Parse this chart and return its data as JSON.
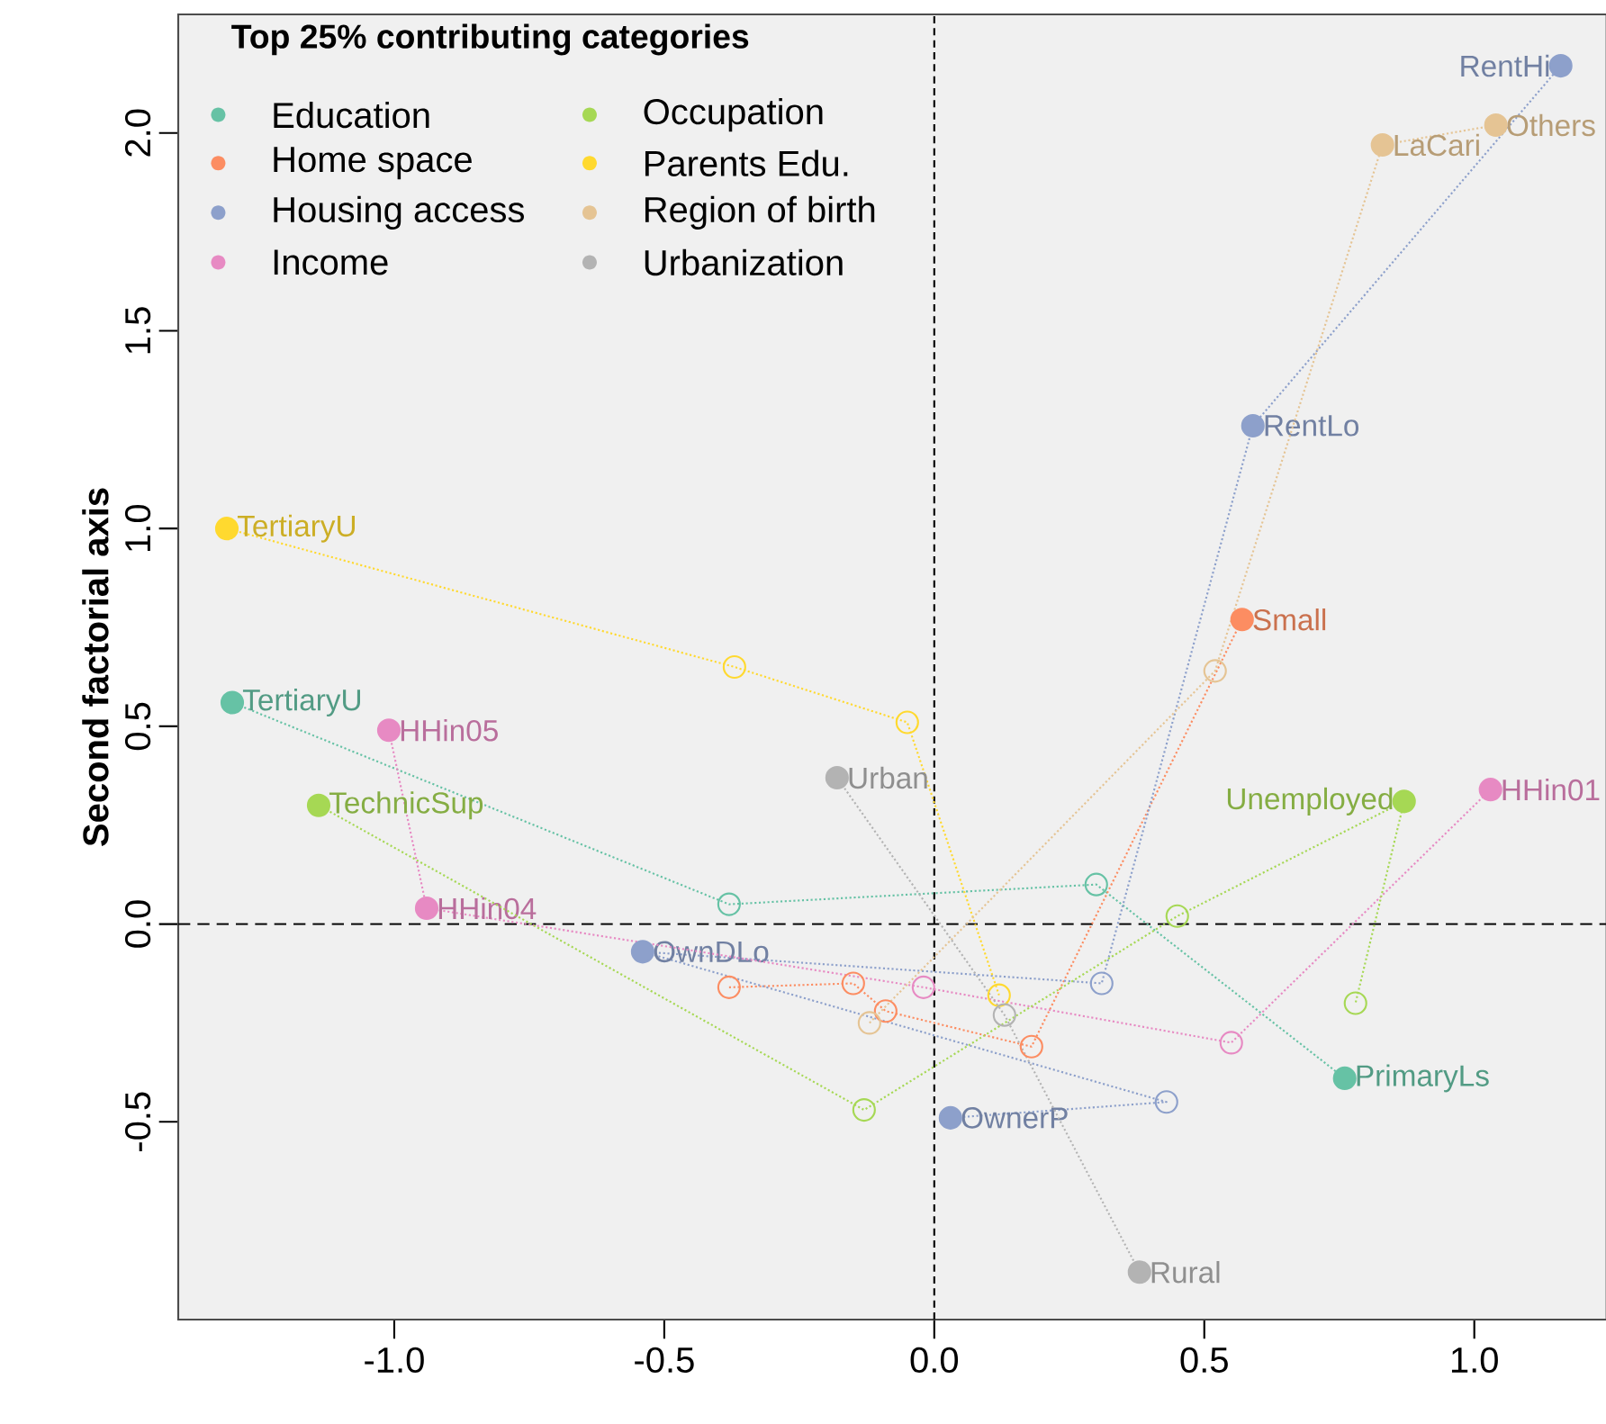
{
  "chart_data": {
    "type": "scatter",
    "ylabel": "Second factorial axis",
    "legend_title": "Top 25% contributing categories",
    "legend": "top left",
    "marker": "circle",
    "line_style": "dotted",
    "xlim": [
      -1.4,
      1.245
    ],
    "ylim": [
      -1.0,
      2.3
    ],
    "xticks": [
      {
        "value": -1.0,
        "label": "-1.0"
      },
      -0.5,
      {
        "value": 0.0,
        "label": "0.0"
      },
      0.5,
      {
        "value": 1.0,
        "label": "1.0"
      }
    ],
    "yticks": [
      -0.5,
      {
        "value": 0.0,
        "label": "0.0"
      },
      0.5,
      {
        "value": 1.0,
        "label": "1.0"
      },
      1.5,
      {
        "value": 2.0,
        "label": "2.0"
      }
    ],
    "ref_lines": [
      {
        "axis": "x",
        "value": 0,
        "line_style": "dotted",
        "color": "#000000"
      },
      {
        "axis": "y",
        "value": 0,
        "line_style": "dashed",
        "color": "#000000"
      }
    ],
    "series": [
      {
        "type": "line",
        "name": "Education",
        "color": "#66c2a5",
        "x": [
          -1.3,
          -0.38,
          0.3,
          0.76
        ],
        "values": [
          0.56,
          0.05,
          0.1,
          -0.39
        ],
        "value_labels": [
          "TertiaryU",
          null,
          null,
          "PrimaryLs"
        ]
      },
      {
        "type": "line",
        "name": "Home space",
        "color": "#fc8d62",
        "x": [
          -0.38,
          -0.15,
          -0.09,
          0.18,
          0.57
        ],
        "values": [
          -0.16,
          -0.15,
          -0.22,
          -0.31,
          0.77
        ],
        "value_labels": [
          null,
          null,
          null,
          null,
          "Small"
        ]
      },
      {
        "type": "line",
        "name": "Housing access",
        "color": "#8da0cb",
        "x": [
          0.03,
          0.43,
          -0.54,
          0.31,
          0.59,
          1.16
        ],
        "values": [
          -0.49,
          -0.45,
          -0.07,
          -0.15,
          1.26,
          2.17
        ],
        "value_labels": [
          "OwnerP",
          null,
          "OwnDLo",
          null,
          "RentLo",
          "RentHi"
        ]
      },
      {
        "type": "line",
        "name": "Income",
        "color": "#e78ac3",
        "x": [
          -1.01,
          -0.94,
          -0.02,
          0.55,
          1.03
        ],
        "values": [
          0.49,
          0.04,
          -0.16,
          -0.3,
          0.34
        ],
        "value_labels": [
          "HHin05",
          "HHin04",
          null,
          null,
          "HHin01"
        ]
      },
      {
        "type": "line",
        "name": "Occupation",
        "color": "#a6d854",
        "x": [
          -1.14,
          -0.13,
          0.45,
          0.87,
          0.78
        ],
        "values": [
          0.3,
          -0.47,
          0.02,
          0.31,
          -0.2
        ],
        "value_labels": [
          "TechnicSup",
          null,
          null,
          "Unemployed",
          null
        ]
      },
      {
        "type": "line",
        "name": "Parents Edu.",
        "color": "#ffd92f",
        "x": [
          -1.31,
          -0.37,
          -0.05,
          0.12
        ],
        "values": [
          1.0,
          0.65,
          0.51,
          -0.18
        ],
        "value_labels": [
          "TertiaryU",
          null,
          null,
          null
        ]
      },
      {
        "type": "line",
        "name": "Region of birth",
        "color": "#e5c494",
        "x": [
          -0.12,
          0.52,
          0.83,
          1.04
        ],
        "values": [
          -0.25,
          0.64,
          1.97,
          2.02
        ],
        "value_labels": [
          null,
          null,
          "LaCari",
          "Others"
        ]
      },
      {
        "type": "line",
        "name": "Urbanization",
        "color": "#b3b3b3",
        "x": [
          -0.18,
          0.13,
          0.38
        ],
        "values": [
          0.37,
          -0.23,
          -0.88
        ],
        "value_labels": [
          "Urban",
          null,
          "Rural"
        ]
      }
    ]
  }
}
